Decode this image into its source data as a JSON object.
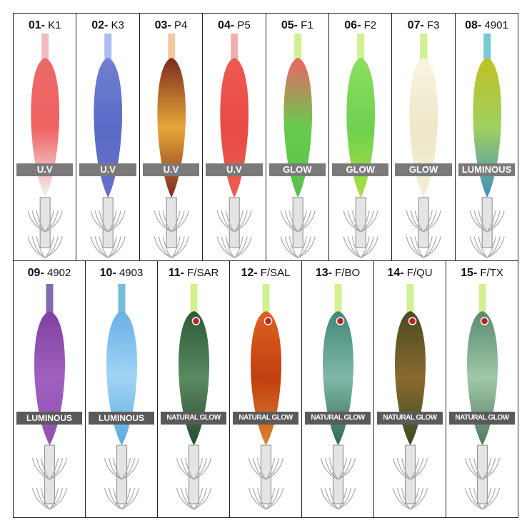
{
  "items": [
    {
      "number": "01-",
      "code": "K1",
      "badge": "U.V"
    },
    {
      "number": "02-",
      "code": "K3",
      "badge": "U.V"
    },
    {
      "number": "03-",
      "code": "P4",
      "badge": "U.V"
    },
    {
      "number": "04-",
      "code": "P5",
      "badge": "U.V"
    },
    {
      "number": "05-",
      "code": "F1",
      "badge": "GLOW"
    },
    {
      "number": "06-",
      "code": "F2",
      "badge": "GLOW"
    },
    {
      "number": "07-",
      "code": "F3",
      "badge": "GLOW"
    },
    {
      "number": "08-",
      "code": "4901",
      "badge": "LUMINOUS"
    },
    {
      "number": "09-",
      "code": "4902",
      "badge": "LUMINOUS"
    },
    {
      "number": "10-",
      "code": "4903",
      "badge": "LUMINOUS"
    },
    {
      "number": "11-",
      "code": "F/SAR",
      "badge": "NATURAL GLOW"
    },
    {
      "number": "12-",
      "code": "F/SAL",
      "badge": "NATURAL GLOW"
    },
    {
      "number": "13-",
      "code": "F/BO",
      "badge": "NATURAL GLOW"
    },
    {
      "number": "14-",
      "code": "F/QU",
      "badge": "NATURAL GLOW"
    },
    {
      "number": "15-",
      "code": "F/TX",
      "badge": "NATURAL GLOW"
    }
  ]
}
